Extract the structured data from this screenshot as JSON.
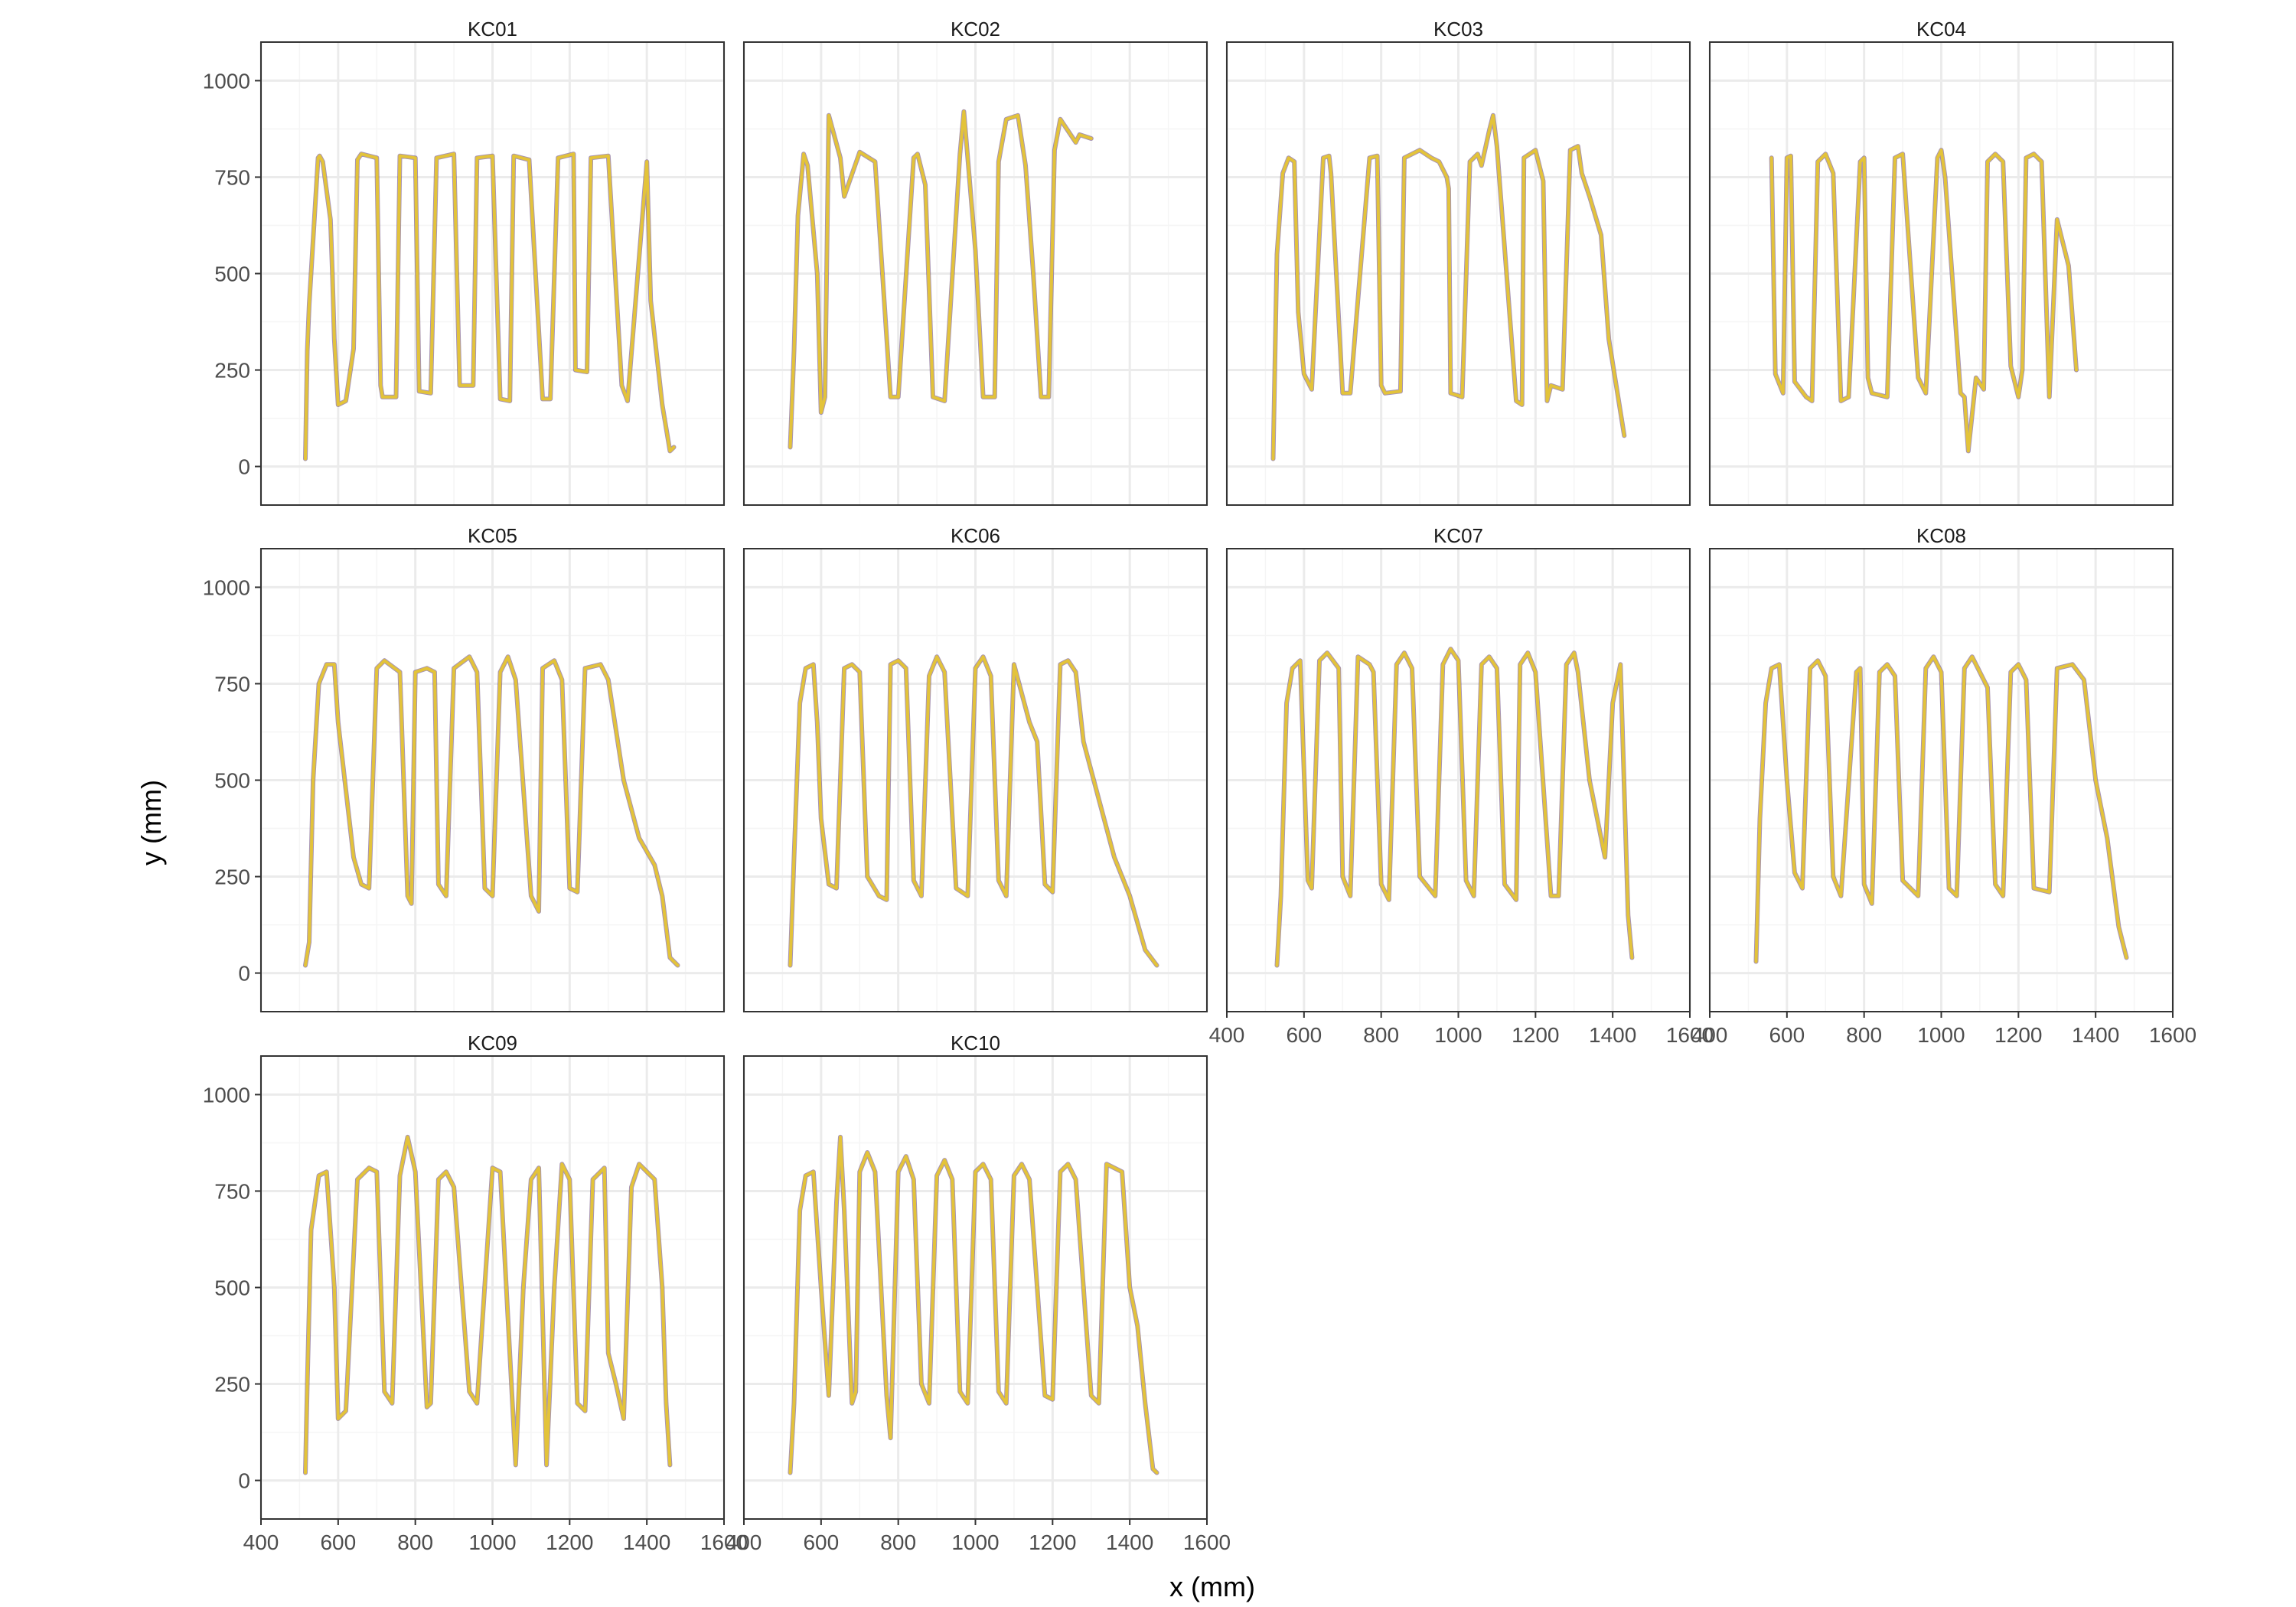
{
  "chart_data": {
    "type": "line",
    "layout": "facet-wrap",
    "xlabel": "x (mm)",
    "ylabel": "y (mm)",
    "xlim": [
      400,
      1600
    ],
    "ylim": [
      -100,
      1100
    ],
    "xticks": [
      400,
      600,
      800,
      1000,
      1200,
      1400,
      1600
    ],
    "yticks": [
      0,
      250,
      500,
      750,
      1000
    ],
    "xtick_labels": [
      "400",
      "600",
      "800",
      "1000",
      "1200",
      "1400",
      "1600"
    ],
    "ytick_labels": [
      "0",
      "250",
      "500",
      "750",
      "1000"
    ],
    "grid": true,
    "colors": {
      "path": "#E3C33A",
      "path_dark": "#5E3C74",
      "panel_border": "#333333",
      "grid_major": "#EBEBEB",
      "grid_minor": "#F5F5F5"
    },
    "facets": [
      {
        "name": "KC01",
        "x": [
          515,
          520,
          525,
          548,
          552,
          560,
          580,
          585,
          590,
          600,
          620,
          640,
          650,
          660,
          700,
          710,
          715,
          750,
          760,
          800,
          810,
          840,
          855,
          900,
          915,
          950,
          960,
          1000,
          1020,
          1045,
          1055,
          1095,
          1130,
          1150,
          1170,
          1210,
          1215,
          1245,
          1255,
          1300,
          1335,
          1350,
          1400,
          1410,
          1440,
          1460,
          1470
        ],
        "y": [
          20,
          300,
          420,
          800,
          805,
          790,
          640,
          500,
          330,
          160,
          170,
          305,
          795,
          810,
          800,
          210,
          180,
          180,
          805,
          800,
          195,
          190,
          800,
          810,
          210,
          210,
          800,
          805,
          175,
          170,
          805,
          795,
          175,
          175,
          800,
          810,
          250,
          245,
          800,
          805,
          210,
          170,
          790,
          430,
          160,
          40,
          50
        ]
      },
      {
        "name": "KC02",
        "x": [
          520,
          530,
          540,
          555,
          565,
          590,
          600,
          610,
          620,
          650,
          660,
          700,
          740,
          780,
          800,
          840,
          850,
          870,
          890,
          920,
          960,
          970,
          1000,
          1020,
          1050,
          1060,
          1080,
          1110,
          1130,
          1150,
          1170,
          1190,
          1205,
          1220,
          1260,
          1270,
          1300
        ],
        "y": [
          50,
          300,
          650,
          810,
          780,
          500,
          140,
          180,
          910,
          800,
          700,
          815,
          790,
          180,
          180,
          800,
          810,
          730,
          180,
          170,
          810,
          920,
          560,
          180,
          180,
          790,
          900,
          910,
          780,
          500,
          180,
          180,
          820,
          900,
          840,
          860,
          850
        ]
      },
      {
        "name": "KC03",
        "x": [
          520,
          530,
          545,
          560,
          575,
          585,
          600,
          620,
          650,
          665,
          670,
          700,
          720,
          770,
          790,
          800,
          810,
          850,
          860,
          900,
          930,
          950,
          970,
          975,
          980,
          1010,
          1030,
          1050,
          1060,
          1080,
          1090,
          1100,
          1150,
          1165,
          1170,
          1200,
          1220,
          1230,
          1240,
          1270,
          1290,
          1310,
          1320,
          1340,
          1370,
          1390,
          1430
        ],
        "y": [
          20,
          550,
          760,
          800,
          790,
          400,
          240,
          200,
          800,
          805,
          760,
          190,
          190,
          800,
          805,
          210,
          190,
          195,
          800,
          820,
          800,
          790,
          750,
          720,
          190,
          180,
          790,
          810,
          780,
          870,
          910,
          830,
          170,
          160,
          800,
          820,
          740,
          170,
          210,
          200,
          820,
          830,
          760,
          700,
          600,
          330,
          80
        ]
      },
      {
        "name": "KC04",
        "x": [
          560,
          570,
          590,
          600,
          610,
          620,
          650,
          665,
          680,
          700,
          720,
          740,
          760,
          790,
          800,
          810,
          820,
          860,
          880,
          900,
          940,
          960,
          990,
          1000,
          1010,
          1050,
          1060,
          1070,
          1090,
          1110,
          1120,
          1140,
          1160,
          1180,
          1200,
          1210,
          1220,
          1240,
          1260,
          1280,
          1300,
          1330,
          1350
        ],
        "y": [
          800,
          240,
          190,
          800,
          805,
          220,
          180,
          170,
          790,
          810,
          760,
          170,
          180,
          790,
          800,
          230,
          190,
          180,
          800,
          810,
          230,
          190,
          800,
          820,
          750,
          190,
          180,
          40,
          230,
          200,
          790,
          810,
          790,
          260,
          180,
          250,
          800,
          810,
          790,
          180,
          640,
          520,
          250
        ]
      },
      {
        "name": "KC05",
        "x": [
          515,
          525,
          535,
          550,
          570,
          590,
          600,
          640,
          660,
          680,
          700,
          720,
          760,
          780,
          790,
          800,
          830,
          850,
          860,
          880,
          900,
          940,
          960,
          980,
          1000,
          1020,
          1040,
          1060,
          1100,
          1120,
          1130,
          1160,
          1180,
          1200,
          1220,
          1240,
          1280,
          1300,
          1340,
          1380,
          1420,
          1440,
          1460,
          1480
        ],
        "y": [
          20,
          80,
          500,
          750,
          800,
          800,
          650,
          300,
          230,
          220,
          790,
          810,
          780,
          200,
          180,
          780,
          790,
          780,
          230,
          200,
          790,
          820,
          780,
          220,
          200,
          780,
          820,
          760,
          200,
          160,
          790,
          810,
          760,
          220,
          210,
          790,
          800,
          760,
          500,
          350,
          280,
          200,
          40,
          20
        ]
      },
      {
        "name": "KC06",
        "x": [
          520,
          530,
          545,
          560,
          580,
          590,
          600,
          620,
          640,
          660,
          680,
          700,
          720,
          750,
          770,
          780,
          800,
          820,
          840,
          860,
          880,
          900,
          920,
          950,
          980,
          1000,
          1020,
          1040,
          1060,
          1080,
          1100,
          1140,
          1160,
          1180,
          1200,
          1220,
          1240,
          1260,
          1280,
          1320,
          1360,
          1400,
          1440,
          1470
        ],
        "y": [
          20,
          300,
          700,
          790,
          800,
          650,
          400,
          230,
          220,
          790,
          800,
          780,
          250,
          200,
          190,
          800,
          810,
          790,
          240,
          200,
          770,
          820,
          780,
          220,
          200,
          790,
          820,
          770,
          240,
          200,
          800,
          650,
          600,
          230,
          210,
          800,
          810,
          780,
          600,
          450,
          300,
          200,
          60,
          20
        ]
      },
      {
        "name": "KC07",
        "x": [
          530,
          540,
          555,
          570,
          590,
          610,
          620,
          640,
          660,
          690,
          700,
          720,
          740,
          770,
          780,
          800,
          820,
          840,
          860,
          880,
          900,
          940,
          960,
          980,
          1000,
          1020,
          1040,
          1060,
          1080,
          1100,
          1120,
          1150,
          1160,
          1180,
          1200,
          1240,
          1260,
          1280,
          1300,
          1310,
          1340,
          1380,
          1400,
          1420,
          1440,
          1450
        ],
        "y": [
          20,
          200,
          700,
          790,
          810,
          240,
          220,
          810,
          830,
          790,
          250,
          200,
          820,
          800,
          780,
          230,
          190,
          800,
          830,
          790,
          250,
          200,
          800,
          840,
          810,
          240,
          200,
          800,
          820,
          790,
          230,
          190,
          800,
          830,
          780,
          200,
          200,
          800,
          830,
          780,
          500,
          300,
          700,
          800,
          150,
          40
        ]
      },
      {
        "name": "KC08",
        "x": [
          520,
          530,
          545,
          560,
          580,
          600,
          620,
          640,
          660,
          680,
          700,
          720,
          740,
          780,
          790,
          800,
          820,
          840,
          860,
          880,
          900,
          940,
          960,
          980,
          1000,
          1020,
          1040,
          1060,
          1080,
          1120,
          1140,
          1160,
          1180,
          1200,
          1220,
          1240,
          1280,
          1300,
          1340,
          1370,
          1400,
          1430,
          1460,
          1480
        ],
        "y": [
          30,
          400,
          700,
          790,
          800,
          500,
          260,
          220,
          790,
          810,
          770,
          250,
          200,
          780,
          790,
          230,
          180,
          780,
          800,
          770,
          240,
          200,
          790,
          820,
          780,
          220,
          200,
          790,
          820,
          740,
          230,
          200,
          780,
          800,
          760,
          220,
          210,
          790,
          800,
          760,
          500,
          350,
          120,
          40
        ]
      },
      {
        "name": "KC09",
        "x": [
          515,
          520,
          530,
          550,
          570,
          590,
          600,
          620,
          650,
          680,
          700,
          720,
          740,
          760,
          780,
          800,
          830,
          840,
          860,
          880,
          900,
          940,
          960,
          1000,
          1020,
          1060,
          1080,
          1100,
          1120,
          1140,
          1160,
          1180,
          1200,
          1220,
          1240,
          1260,
          1290,
          1300,
          1320,
          1340,
          1360,
          1380,
          1400,
          1420,
          1440,
          1450,
          1460
        ],
        "y": [
          20,
          250,
          650,
          790,
          800,
          500,
          160,
          180,
          780,
          810,
          800,
          230,
          200,
          790,
          890,
          800,
          190,
          200,
          780,
          800,
          760,
          230,
          200,
          810,
          800,
          40,
          500,
          780,
          810,
          40,
          500,
          820,
          780,
          200,
          180,
          780,
          810,
          330,
          250,
          160,
          760,
          820,
          800,
          780,
          500,
          200,
          40
        ]
      },
      {
        "name": "KC10",
        "x": [
          520,
          530,
          545,
          560,
          580,
          600,
          620,
          640,
          650,
          660,
          680,
          690,
          700,
          720,
          740,
          770,
          780,
          800,
          820,
          840,
          860,
          880,
          900,
          920,
          940,
          960,
          980,
          1000,
          1020,
          1040,
          1060,
          1080,
          1100,
          1120,
          1140,
          1180,
          1200,
          1220,
          1240,
          1260,
          1300,
          1320,
          1340,
          1380,
          1400,
          1420,
          1440,
          1460,
          1470
        ],
        "y": [
          20,
          200,
          700,
          790,
          800,
          500,
          220,
          720,
          890,
          700,
          200,
          230,
          800,
          850,
          800,
          220,
          110,
          800,
          840,
          780,
          250,
          200,
          790,
          830,
          780,
          230,
          200,
          800,
          820,
          780,
          230,
          200,
          790,
          820,
          780,
          220,
          210,
          800,
          820,
          780,
          220,
          200,
          820,
          800,
          500,
          400,
          200,
          30,
          20
        ]
      }
    ]
  }
}
